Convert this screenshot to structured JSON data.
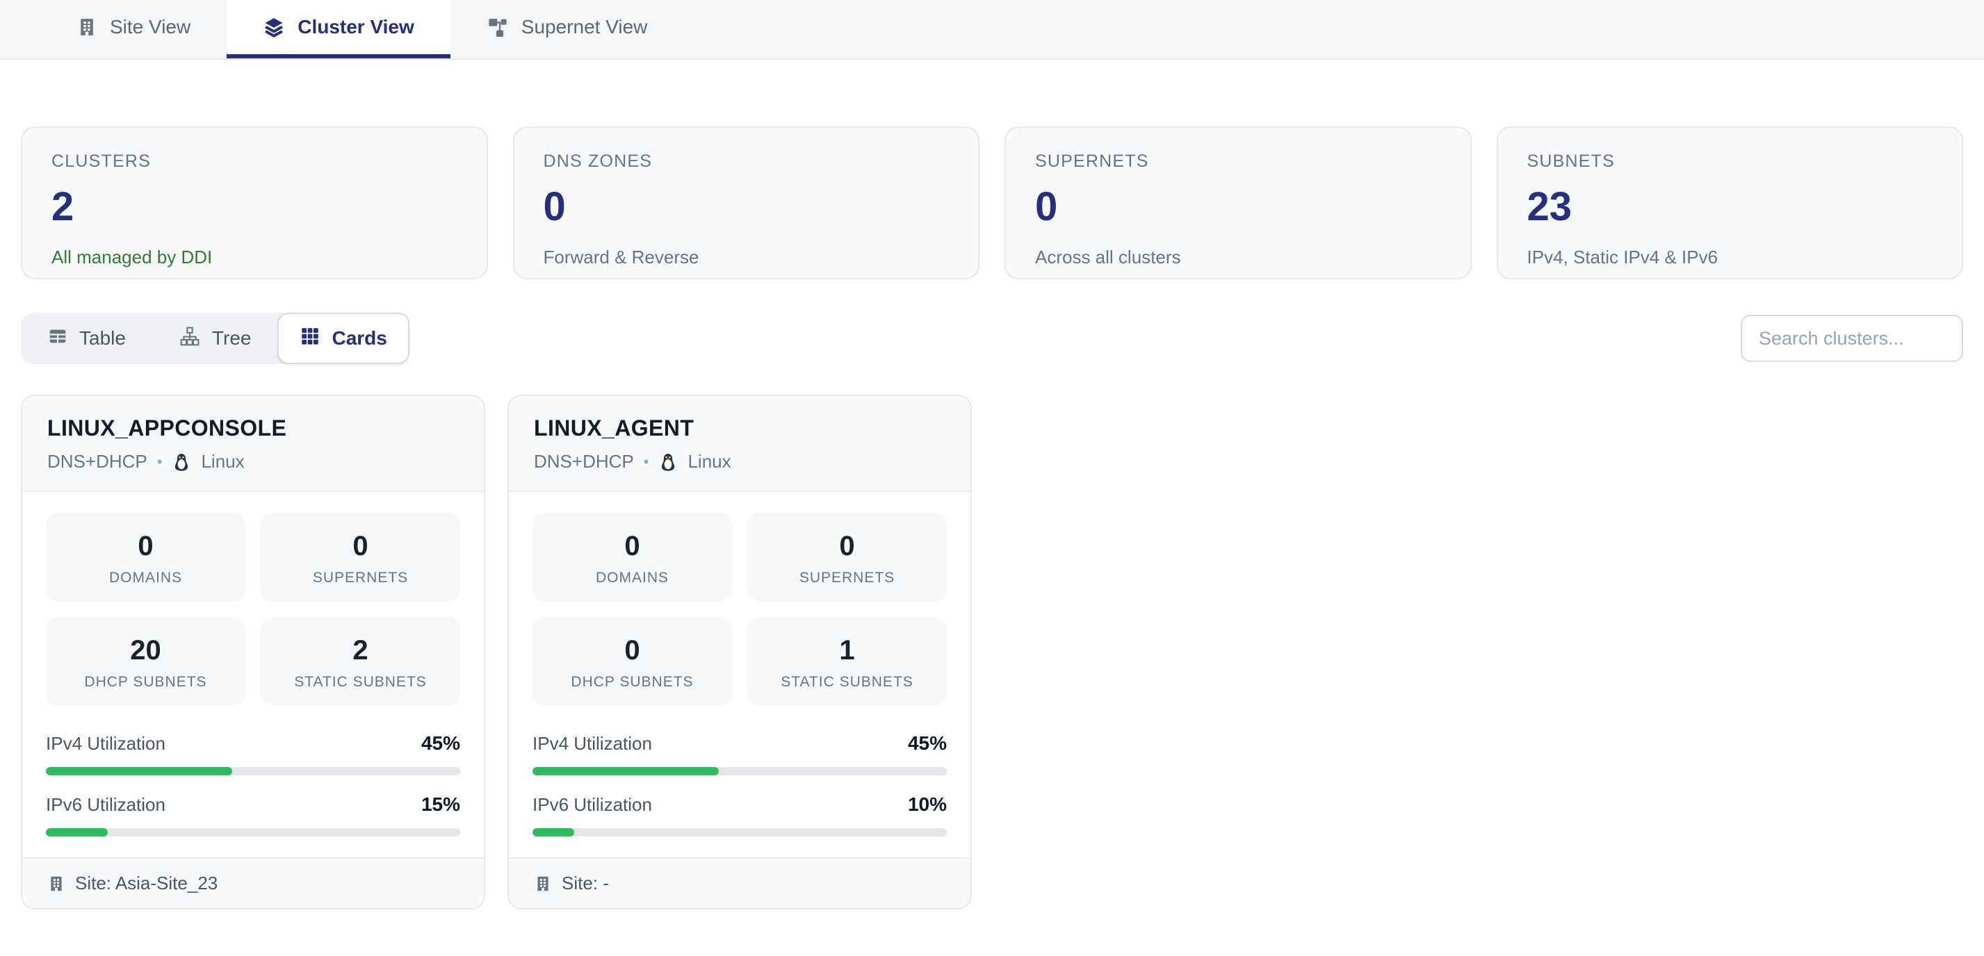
{
  "tabs": {
    "site": {
      "label": "Site View"
    },
    "cluster": {
      "label": "Cluster View"
    },
    "supernet": {
      "label": "Supernet View"
    }
  },
  "summary": [
    {
      "label": "CLUSTERS",
      "value": "2",
      "caption": "All managed by DDI"
    },
    {
      "label": "DNS ZONES",
      "value": "0",
      "caption": "Forward & Reverse"
    },
    {
      "label": "SUPERNETS",
      "value": "0",
      "caption": "Across all clusters"
    },
    {
      "label": "SUBNETS",
      "value": "23",
      "caption": "IPv4, Static IPv4 & IPv6"
    }
  ],
  "toolbar": {
    "table_label": "Table",
    "tree_label": "Tree",
    "cards_label": "Cards",
    "search_placeholder": "Search clusters..."
  },
  "clusters": [
    {
      "name": "LINUX_APPCONSOLE",
      "service": "DNS+DHCP",
      "separator": "•",
      "os": "Linux",
      "stats": [
        {
          "value": "0",
          "label": "DOMAINS"
        },
        {
          "value": "0",
          "label": "SUPERNETS"
        },
        {
          "value": "20",
          "label": "DHCP SUBNETS"
        },
        {
          "value": "2",
          "label": "STATIC SUBNETS"
        }
      ],
      "utilization": [
        {
          "label": "IPv4 Utilization",
          "display": "45%",
          "percent": 45
        },
        {
          "label": "IPv6 Utilization",
          "display": "15%",
          "percent": 15
        }
      ],
      "site": "Site: Asia-Site_23"
    },
    {
      "name": "LINUX_AGENT",
      "service": "DNS+DHCP",
      "separator": "•",
      "os": "Linux",
      "stats": [
        {
          "value": "0",
          "label": "DOMAINS"
        },
        {
          "value": "0",
          "label": "SUPERNETS"
        },
        {
          "value": "0",
          "label": "DHCP SUBNETS"
        },
        {
          "value": "1",
          "label": "STATIC SUBNETS"
        }
      ],
      "utilization": [
        {
          "label": "IPv4 Utilization",
          "display": "45%",
          "percent": 45
        },
        {
          "label": "IPv6 Utilization",
          "display": "10%",
          "percent": 10
        }
      ],
      "site": "Site: -"
    }
  ],
  "colors": {
    "accent": "#252f80",
    "success_text": "#2e7d32",
    "progress_green": "#2ebd5e"
  }
}
